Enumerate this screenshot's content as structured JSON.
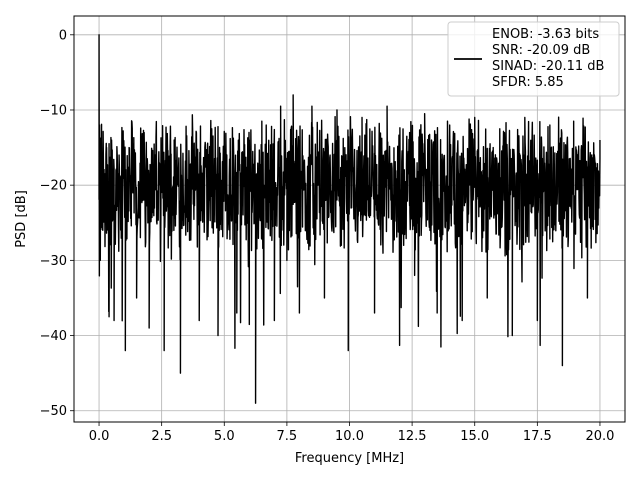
{
  "chart_data": {
    "type": "line",
    "title": "",
    "xlabel": "Frequency [MHz]",
    "ylabel": "PSD [dB]",
    "xlim": [
      -1.0,
      21.0
    ],
    "ylim": [
      -51.5,
      2.5
    ],
    "xticks": [
      0.0,
      2.5,
      5.0,
      7.5,
      10.0,
      12.5,
      15.0,
      17.5,
      20.0
    ],
    "xtick_labels": [
      "0.0",
      "2.5",
      "5.0",
      "7.5",
      "10.0",
      "12.5",
      "15.0",
      "17.5",
      "20.0"
    ],
    "yticks": [
      0,
      -10,
      -20,
      -30,
      -40,
      -50
    ],
    "ytick_labels": [
      "0",
      "−10",
      "−20",
      "−30",
      "−40",
      "−50"
    ],
    "grid": true,
    "legend_position": "top-right",
    "legend_lines": [
      "ENOB: -3.63 bits",
      "SNR: -20.09 dB",
      "SINAD: -20.11 dB",
      "SFDR: 5.85"
    ],
    "series": [
      {
        "color": "#000000",
        "description": "dense noise-like PSD trace, mostly between -28 and -12 dB",
        "x": [
          0.0,
          0.02,
          0.05,
          0.1,
          0.15,
          0.3,
          0.4,
          0.5,
          0.6,
          0.8,
          1.05,
          1.2,
          1.5,
          1.8,
          2.0,
          2.4,
          2.6,
          3.0,
          3.25,
          3.5,
          4.0,
          4.5,
          4.75,
          5.0,
          5.5,
          6.0,
          6.25,
          6.5,
          7.0,
          7.25,
          7.5,
          7.75,
          8.0,
          8.5,
          9.0,
          9.5,
          9.95,
          10.5,
          11.0,
          11.5,
          12.0,
          12.4,
          12.6,
          13.0,
          13.5,
          14.0,
          14.5,
          15.0,
          15.5,
          16.0,
          16.5,
          17.0,
          17.5,
          18.0,
          18.5,
          18.95,
          19.5,
          20.0
        ],
        "y": [
          0.0,
          -12.0,
          -30.0,
          -14.0,
          -26.0,
          -15.0,
          -37.5,
          -14.0,
          -38.0,
          -16.0,
          -42.0,
          -15.0,
          -35.0,
          -13.0,
          -39.0,
          -17.0,
          -42.0,
          -14.0,
          -45.0,
          -13.5,
          -38.0,
          -12.5,
          -40.0,
          -13.0,
          -37.0,
          -14.0,
          -49.0,
          -11.5,
          -38.0,
          -9.5,
          -30.0,
          -8.0,
          -37.0,
          -9.5,
          -35.0,
          -10.0,
          -42.0,
          -11.0,
          -37.0,
          -9.5,
          -36.0,
          -13.0,
          -32.0,
          -10.5,
          -37.0,
          -12.0,
          -38.0,
          -11.0,
          -35.0,
          -12.5,
          -40.0,
          -11.0,
          -38.0,
          -12.0,
          -44.0,
          -11.5,
          -35.0,
          -14.0
        ]
      }
    ]
  }
}
